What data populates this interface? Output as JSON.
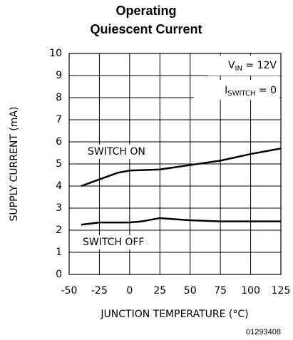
{
  "chart_data": {
    "type": "line",
    "title": [
      "Operating",
      "Quiescent Current"
    ],
    "xlabel": "JUNCTION TEMPERATURE (°C)",
    "ylabel": "SUPPLY CURRENT (mA)",
    "figure_code": "01293408",
    "xlim": [
      -50,
      125
    ],
    "xticks": [
      -50,
      -25,
      0,
      25,
      50,
      75,
      100,
      125
    ],
    "ylim": [
      0,
      10
    ],
    "yticks": [
      0,
      1,
      2,
      3,
      4,
      5,
      6,
      7,
      8,
      9,
      10
    ],
    "grid": true,
    "annotations": [
      {
        "base": "V",
        "sub": "IN",
        "rest": " = 12V"
      },
      {
        "base": "I",
        "sub": "SWITCH",
        "rest": " = 0"
      }
    ],
    "series": [
      {
        "name": "SWITCH ON",
        "color": "#000000",
        "x": [
          -40,
          -25,
          -10,
          0,
          25,
          50,
          75,
          100,
          125
        ],
        "values": [
          4.0,
          4.3,
          4.6,
          4.7,
          4.75,
          4.95,
          5.15,
          5.45,
          5.7
        ]
      },
      {
        "name": "SWITCH OFF",
        "color": "#000000",
        "x": [
          -40,
          -25,
          0,
          10,
          25,
          50,
          75,
          100,
          125
        ],
        "values": [
          2.25,
          2.35,
          2.35,
          2.4,
          2.55,
          2.45,
          2.4,
          2.4,
          2.4
        ]
      }
    ]
  }
}
